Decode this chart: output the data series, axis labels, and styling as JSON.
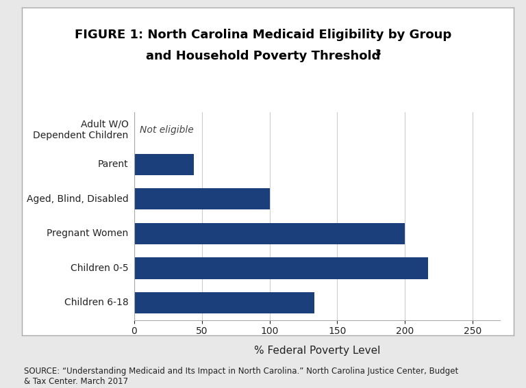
{
  "categories": [
    "Children 6-18",
    "Children 0-5",
    "Pregnant Women",
    "Aged, Blind, Disabled",
    "Parent",
    "Adult W/O\nDependent Children"
  ],
  "values": [
    133,
    217,
    200,
    100,
    44,
    0
  ],
  "bar_color": "#1a3f7a",
  "not_eligible_label": "Not eligible",
  "xlabel": "% Federal Poverty Level",
  "xlim": [
    0,
    270
  ],
  "xticks": [
    0,
    50,
    100,
    150,
    200,
    250
  ],
  "title_part1": "FIGURE 1: ",
  "title_part2": "North Carolina Medicaid Eligibility by Group",
  "title_line2": "and Household Poverty Threshold",
  "title_sup": "3",
  "source_text": "SOURCE: “Understanding Medicaid and Its Impact in North Carolina.” North Carolina Justice Center, Budget\n& Tax Center. March 2017",
  "outer_bg": "#e8e8e8",
  "inner_bg": "#ffffff",
  "grid_color": "#cccccc",
  "border_color": "#aaaaaa",
  "text_color": "#222222",
  "source_color": "#222222"
}
